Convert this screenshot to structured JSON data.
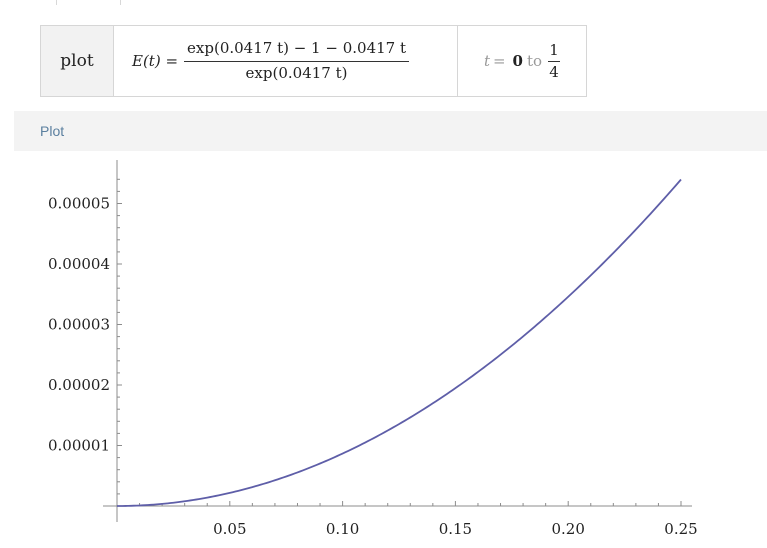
{
  "input": {
    "command": "plot",
    "lhs": "E(t) =",
    "numerator": "exp(0.0417 t) − 1 − 0.0417 t",
    "denominator": "exp(0.0417 t)",
    "range_var": "t",
    "range_eq": "=",
    "range_start": "0",
    "range_to": "to",
    "range_end_num": "1",
    "range_end_den": "4"
  },
  "pod": {
    "title": "Plot"
  },
  "colors": {
    "curve": "#5e5ea8",
    "axis": "#8c8c8c",
    "pod_title": "#5a7f9f"
  },
  "chart_data": {
    "type": "line",
    "function": "E(t) = (exp(0.0417 t) − 1 − 0.0417 t) / exp(0.0417 t)",
    "k": 0.0417,
    "xlim": [
      0,
      0.25
    ],
    "ylim": [
      0,
      5.4e-05
    ],
    "x_ticks": [
      "0.05",
      "0.10",
      "0.15",
      "0.20",
      "0.25"
    ],
    "y_ticks": [
      "0.00001",
      "0.00002",
      "0.00003",
      "0.00004",
      "0.00005"
    ],
    "xlabel": "",
    "ylabel": "",
    "grid": false
  }
}
